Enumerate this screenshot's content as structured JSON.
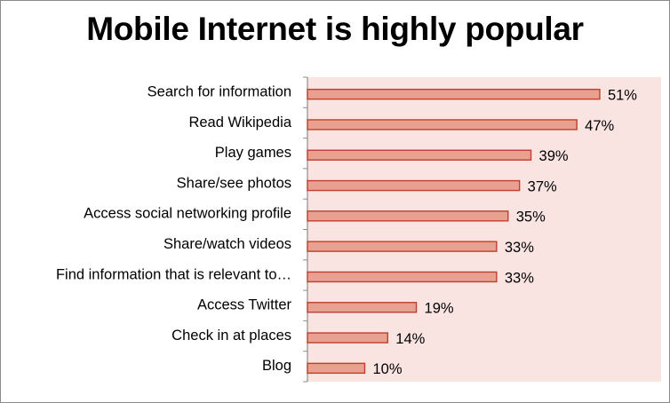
{
  "chart_data": {
    "type": "bar",
    "orientation": "horizontal",
    "title": "Mobile Internet is highly popular",
    "categories": [
      "Search for information",
      "Read Wikipedia",
      "Play games",
      "Share/see photos",
      "Access social networking profile",
      "Share/watch videos",
      "Find information that is relevant to…",
      "Access Twitter",
      "Check in at places",
      "Blog"
    ],
    "values": [
      51,
      47,
      39,
      37,
      35,
      33,
      33,
      19,
      14,
      10
    ],
    "value_labels": [
      "51%",
      "47%",
      "39%",
      "37%",
      "35%",
      "33%",
      "33%",
      "19%",
      "14%",
      "10%"
    ],
    "unit": "%",
    "xlim": [
      0,
      60
    ],
    "grid": false,
    "legend": "none",
    "colors": {
      "bar_fill": "#e8a090",
      "bar_stroke": "#c0402c",
      "plot_background": "#f9e4e2",
      "axis": "#8c8c8c"
    }
  }
}
